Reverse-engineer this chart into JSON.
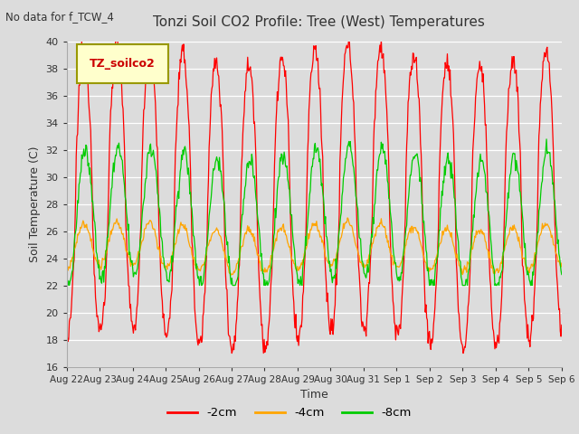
{
  "title": "Tonzi Soil CO2 Profile: Tree (West) Temperatures",
  "subtitle": "No data for f_TCW_4",
  "ylabel": "Soil Temperature (C)",
  "xlabel": "Time",
  "legend_label": "TZ_soilco2",
  "ylim": [
    16,
    40
  ],
  "yticks": [
    16,
    18,
    20,
    22,
    24,
    26,
    28,
    30,
    32,
    34,
    36,
    38,
    40
  ],
  "bg_color": "#dcdcdc",
  "line_colors": {
    "2cm": "#ff0000",
    "4cm": "#ffa500",
    "8cm": "#00cc00"
  },
  "line_labels": [
    "-2cm",
    "-4cm",
    "-8cm"
  ],
  "num_days": 15,
  "xtick_labels": [
    "Aug 22",
    "Aug 23",
    "Aug 24",
    "Aug 25",
    "Aug 26",
    "Aug 27",
    "Aug 28",
    "Aug 29",
    "Aug 30",
    "Aug 31",
    "Sep 1",
    "Sep 2",
    "Sep 3",
    "Sep 4",
    "Sep 5",
    "Sep 6"
  ]
}
